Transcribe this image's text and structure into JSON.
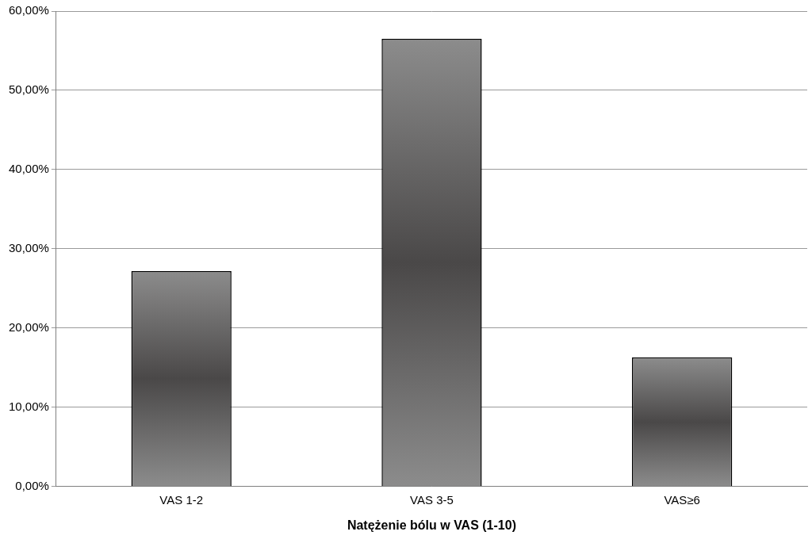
{
  "chart_data": {
    "type": "bar",
    "x_label": "Natężenie bólu w VAS (1-10)",
    "categories": [
      "VAS 1-2",
      "VAS 3-5",
      "VAS≥6"
    ],
    "values": [
      27.2,
      56.5,
      16.3
    ],
    "color": "#8c8c8c",
    "ylim": [
      0,
      60
    ],
    "yticks": [
      {
        "value": 0,
        "label": "0,00%"
      },
      {
        "value": 10,
        "label": "10,00%"
      },
      {
        "value": 20,
        "label": "20,00%"
      },
      {
        "value": 30,
        "label": "30,00%"
      },
      {
        "value": 40,
        "label": "40,00%"
      },
      {
        "value": 50,
        "label": "50,00%"
      },
      {
        "value": 60,
        "label": "60,00%"
      }
    ],
    "grid": true
  }
}
